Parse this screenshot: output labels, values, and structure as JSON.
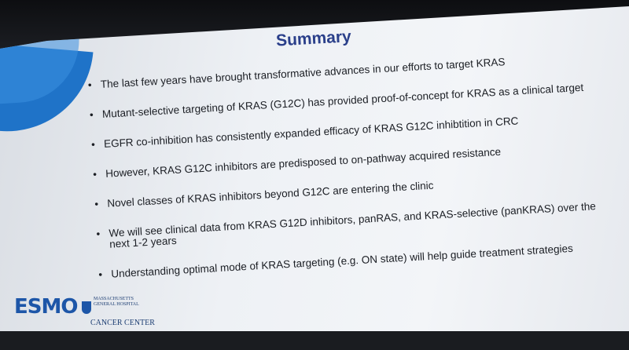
{
  "slide": {
    "title": "Summary",
    "bullets": [
      "The last few years have brought transformative advances in our efforts to target KRAS",
      "Mutant-selective targeting of KRAS (G12C) has provided proof-of-concept for KRAS as a clinical target",
      "EGFR co-inhibition has consistently expanded efficacy of KRAS G12C inhibtition in CRC",
      "However, KRAS G12C inhibitors are predisposed to on-pathway acquired resistance",
      "Novel classes of KRAS inhibitors beyond G12C are entering the clinic",
      "We will see clinical data from KRAS G12D inhibitors, panRAS, and KRAS-selective (panKRAS) over the next 1-2 years",
      "Understanding optimal mode of KRAS targeting (e.g. ON state) will help guide treatment strategies"
    ],
    "bullet_marker": "•"
  },
  "logos": {
    "esmo": "ESMO",
    "mgh_line1": "MASSACHUSETTS",
    "mgh_line2": "GENERAL HOSPITAL",
    "cancer_center": "CANCER CENTER"
  },
  "colors": {
    "title": "#2a3f8a",
    "accent_blue": "#1f73c8",
    "esmo_blue": "#1d56a8"
  }
}
